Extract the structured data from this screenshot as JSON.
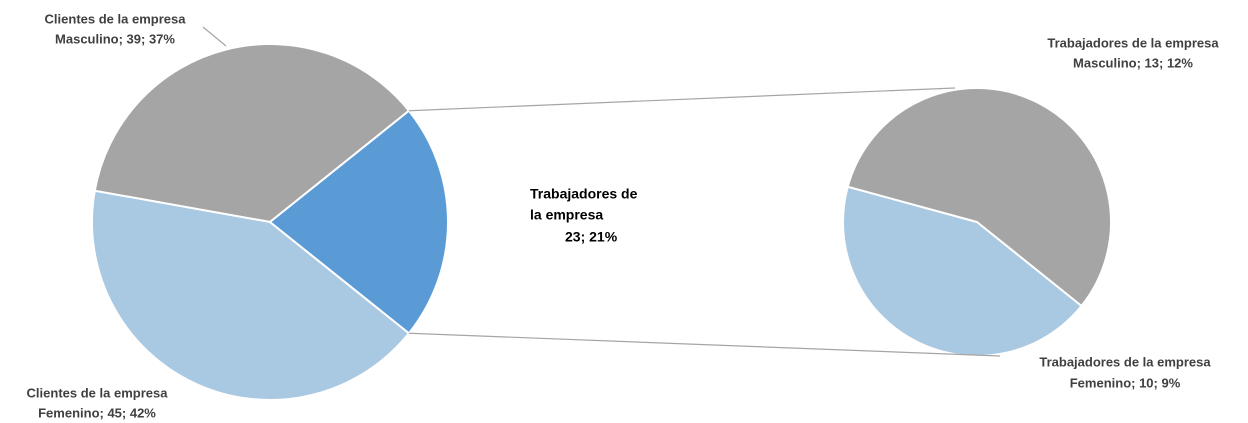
{
  "chart_data": {
    "type": "pie-of-pie",
    "values": [
      39,
      45,
      23
    ],
    "colors": [
      "#a5a5a5",
      "#a9c8e2",
      "#5b9bd5"
    ],
    "labels": [
      [
        "Clientes de la empresa",
        "Masculino; 39; 37%"
      ],
      [
        "Clientes de la empresa",
        "Femenino; 45; 42%"
      ],
      [
        "Trabajadores de",
        "la empresa",
        "23; 21%"
      ]
    ],
    "secondary": {
      "values": [
        13,
        10
      ],
      "colors": [
        "#a5a5a5",
        "#a9c8e2"
      ],
      "labels": [
        [
          "Trabajadores de la empresa",
          "Masculino; 13; 12%"
        ],
        [
          "Trabajadores de la empresa",
          "Femenino; 10; 9%"
        ]
      ]
    }
  }
}
